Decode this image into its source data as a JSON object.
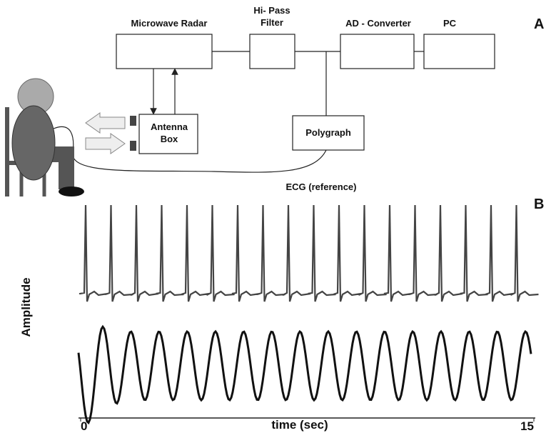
{
  "diagram": {
    "panel_label": "A",
    "nodes": [
      {
        "label": [
          "Microwave Radar"
        ]
      },
      {
        "label": [
          "Hi- Pass",
          "Filter"
        ]
      },
      {
        "label": [
          "AD - Converter"
        ]
      },
      {
        "label": [
          "PC"
        ]
      },
      {
        "label": [
          "Antenna",
          "Box"
        ]
      },
      {
        "label": [
          "Polygraph"
        ]
      }
    ],
    "ecg_label": "ECG (reference)"
  },
  "chart_data": {
    "type": "line",
    "panel_label": "B",
    "x_label": "time (sec)",
    "y_label": "Amplitude",
    "xlim": [
      0,
      15
    ],
    "xticks": [
      0,
      15
    ]
  }
}
